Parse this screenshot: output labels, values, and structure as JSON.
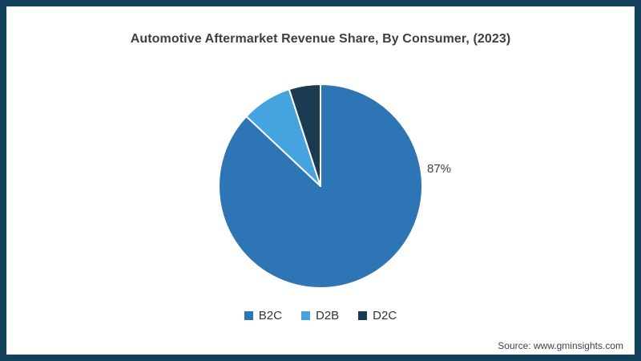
{
  "title": "Automotive Aftermarket Revenue Share, By Consumer, (2023)",
  "source": "Source: www.gminsights.com",
  "colors": {
    "frame_border": "#11405a",
    "background": "#ffffff",
    "title_text": "#3f3f3f",
    "label_text": "#404040"
  },
  "chart_data": {
    "type": "pie",
    "title": "Automotive Aftermarket Revenue Share, By Consumer, (2023)",
    "categories": [
      "B2C",
      "D2B",
      "D2C"
    ],
    "values": [
      87,
      8,
      5
    ],
    "unit": "%",
    "colors": [
      "#2e75b6",
      "#45a3df",
      "#1c3a50"
    ],
    "start_angle_deg": 0,
    "direction": "clockwise",
    "slice_label": "87%",
    "slice_label_for": "B2C",
    "legend_position": "bottom",
    "slice_border_color": "#ffffff"
  },
  "legend": {
    "items": [
      {
        "label": "B2C",
        "color": "#2e75b6"
      },
      {
        "label": "D2B",
        "color": "#45a3df"
      },
      {
        "label": "D2C",
        "color": "#1c3a50"
      }
    ]
  }
}
